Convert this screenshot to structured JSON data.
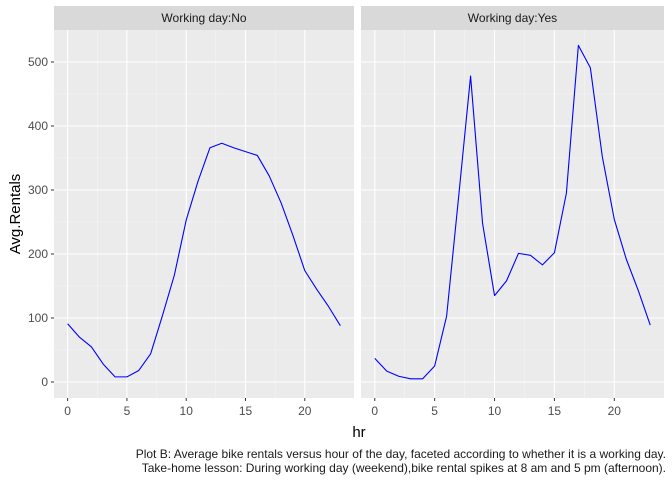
{
  "chart_data": {
    "type": "line",
    "ylabel": "Avg.Rentals",
    "xlabel": "hr",
    "line_color": "#0000ff",
    "panel_background": "#ebebeb",
    "strip_background": "#d9d9d9",
    "grid": true,
    "xlim": [
      -1.15,
      24.15
    ],
    "ylim": [
      -25,
      550
    ],
    "x_ticks": [
      0,
      5,
      10,
      15,
      20
    ],
    "y_ticks": [
      0,
      100,
      200,
      300,
      400,
      500
    ],
    "x": [
      0,
      1,
      2,
      3,
      4,
      5,
      6,
      7,
      8,
      9,
      10,
      11,
      12,
      13,
      14,
      15,
      16,
      17,
      18,
      19,
      20,
      21,
      22,
      23
    ],
    "facets": [
      {
        "name": "Working day:No",
        "values": [
          91,
          70,
          55,
          28,
          8,
          8,
          18,
          44,
          104,
          167,
          253,
          314,
          366,
          373,
          366,
          360,
          354,
          322,
          280,
          229,
          174,
          145,
          118,
          88
        ]
      },
      {
        "name": "Working day:Yes",
        "values": [
          37,
          17,
          9,
          5,
          5,
          25,
          103,
          289,
          478,
          248,
          135,
          158,
          201,
          198,
          183,
          202,
          295,
          526,
          491,
          352,
          254,
          192,
          143,
          89
        ]
      }
    ]
  },
  "caption": {
    "line1": "Plot B: Average bike rentals versus hour of the day, faceted according to whether it is a working day.",
    "line2": "Take-home lesson: During working day (weekend),bike rental spikes at 8 am and 5 pm (afternoon)."
  }
}
